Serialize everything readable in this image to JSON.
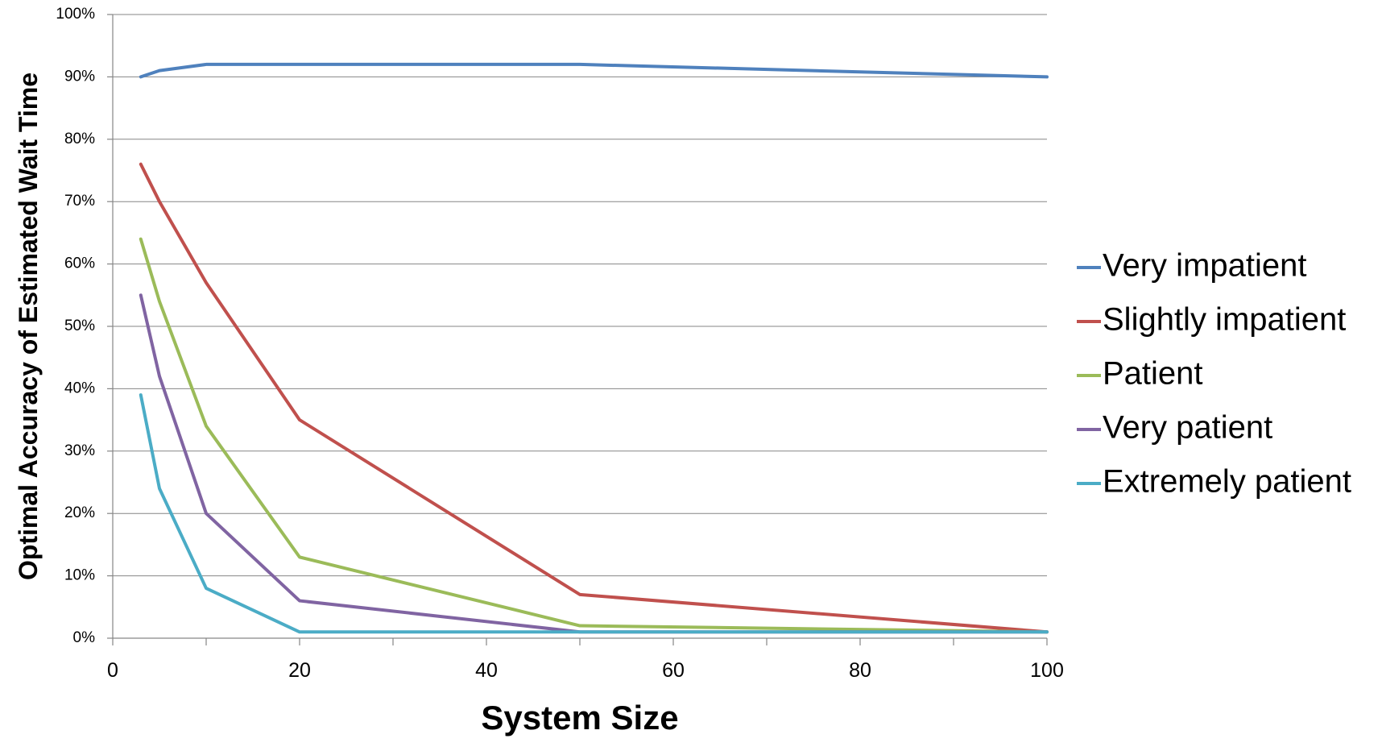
{
  "chart_data": {
    "type": "line",
    "title": "",
    "xlabel": "System Size",
    "ylabel": "Optimal Accuracy of Estimated Wait Time",
    "xlim": [
      0,
      100
    ],
    "ylim": [
      0,
      100
    ],
    "x_ticks": [
      0,
      20,
      40,
      60,
      80,
      100
    ],
    "x_tick_labels": [
      "0",
      "20",
      "40",
      "60",
      "80",
      "100"
    ],
    "y_ticks": [
      0,
      10,
      20,
      30,
      40,
      50,
      60,
      70,
      80,
      90,
      100
    ],
    "y_tick_labels": [
      "0%",
      "10%",
      "20%",
      "30%",
      "40%",
      "50%",
      "60%",
      "70%",
      "80%",
      "90%",
      "100%"
    ],
    "grid": true,
    "legend_position": "right",
    "x": [
      3,
      5,
      10,
      20,
      50,
      100
    ],
    "series": [
      {
        "name": "Very impatient",
        "color": "#4F81BD",
        "values": [
          90,
          91,
          92,
          92,
          92,
          90
        ]
      },
      {
        "name": "Slightly impatient",
        "color": "#C0504D",
        "values": [
          76,
          70,
          57,
          35,
          7,
          1
        ]
      },
      {
        "name": "Patient",
        "color": "#9BBB59",
        "values": [
          64,
          54,
          34,
          13,
          2,
          1
        ]
      },
      {
        "name": "Very patient",
        "color": "#8064A2",
        "values": [
          55,
          42,
          20,
          6,
          1,
          1
        ]
      },
      {
        "name": "Extremely patient",
        "color": "#4BACC6",
        "values": [
          39,
          24,
          8,
          1,
          1,
          1
        ]
      }
    ]
  }
}
